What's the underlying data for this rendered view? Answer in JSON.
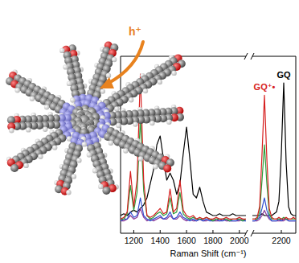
{
  "chart_data": [
    {
      "type": "line",
      "x_label": "Raman Shift (cm⁻¹)",
      "tick_labels": "x",
      "annotations": [
        {
          "text": "h⁺",
          "color": "#e8821e"
        }
      ],
      "xlim": [
        1100,
        2050
      ],
      "ylim": [
        0,
        1
      ],
      "xticks": [
        1200,
        1400,
        1600,
        1800,
        2000
      ],
      "x": [
        1100,
        1125,
        1150,
        1175,
        1200,
        1225,
        1250,
        1275,
        1300,
        1325,
        1350,
        1375,
        1400,
        1425,
        1450,
        1475,
        1500,
        1525,
        1550,
        1575,
        1600,
        1625,
        1650,
        1675,
        1700,
        1725,
        1750,
        1775,
        1800,
        1825,
        1850,
        1875,
        1900,
        1925,
        1950,
        1975,
        2000,
        2025,
        2050
      ],
      "series": [
        {
          "color": "#000000",
          "values": [
            0.1,
            0.11,
            0.1,
            0.12,
            0.13,
            0.12,
            0.14,
            0.16,
            0.2,
            0.28,
            0.36,
            0.5,
            0.55,
            0.42,
            0.3,
            0.34,
            0.3,
            0.22,
            0.28,
            0.45,
            0.6,
            0.42,
            0.22,
            0.2,
            0.26,
            0.18,
            0.12,
            0.11,
            0.1,
            0.1,
            0.11,
            0.1,
            0.1,
            0.1,
            0.11,
            0.1,
            0.1,
            0.1,
            0.1
          ]
        },
        {
          "color": "#8a3a9a",
          "values": [
            0.07,
            0.07,
            0.08,
            0.1,
            0.08,
            0.09,
            0.14,
            0.09,
            0.07,
            0.08,
            0.07,
            0.08,
            0.09,
            0.08,
            0.08,
            0.1,
            0.08,
            0.08,
            0.1,
            0.08,
            0.07,
            0.08,
            0.07,
            0.07,
            0.08,
            0.07,
            0.07,
            0.08,
            0.07,
            0.07,
            0.07,
            0.08,
            0.07,
            0.07,
            0.07,
            0.07,
            0.07,
            0.08,
            0.07
          ]
        },
        {
          "color": "#3050d0",
          "values": [
            0.07,
            0.08,
            0.08,
            0.12,
            0.09,
            0.1,
            0.2,
            0.1,
            0.08,
            0.07,
            0.08,
            0.09,
            0.1,
            0.08,
            0.09,
            0.12,
            0.08,
            0.09,
            0.12,
            0.09,
            0.08,
            0.07,
            0.08,
            0.07,
            0.08,
            0.07,
            0.08,
            0.07,
            0.07,
            0.08,
            0.07,
            0.07,
            0.08,
            0.07,
            0.07,
            0.07,
            0.08,
            0.07,
            0.07
          ]
        },
        {
          "color": "#2e9e3a",
          "values": [
            0.08,
            0.08,
            0.11,
            0.27,
            0.13,
            0.23,
            0.65,
            0.24,
            0.1,
            0.08,
            0.09,
            0.11,
            0.12,
            0.1,
            0.11,
            0.2,
            0.11,
            0.12,
            0.23,
            0.11,
            0.09,
            0.08,
            0.09,
            0.08,
            0.08,
            0.08,
            0.09,
            0.08,
            0.07,
            0.08,
            0.08,
            0.08,
            0.08,
            0.07,
            0.08,
            0.08,
            0.08,
            0.07,
            0.08
          ]
        },
        {
          "color": "#d62020",
          "values": [
            0.08,
            0.09,
            0.12,
            0.35,
            0.15,
            0.3,
            0.9,
            0.3,
            0.1,
            0.09,
            0.1,
            0.12,
            0.14,
            0.11,
            0.12,
            0.25,
            0.12,
            0.14,
            0.3,
            0.13,
            0.1,
            0.09,
            0.1,
            0.08,
            0.09,
            0.08,
            0.09,
            0.08,
            0.08,
            0.09,
            0.08,
            0.08,
            0.09,
            0.08,
            0.08,
            0.08,
            0.09,
            0.08,
            0.08
          ]
        }
      ]
    },
    {
      "type": "line",
      "tick_labels": "x",
      "xlim": [
        2080,
        2260
      ],
      "ylim": [
        0,
        1
      ],
      "xticks": [
        2200
      ],
      "x": [
        2080,
        2090,
        2100,
        2110,
        2120,
        2130,
        2140,
        2150,
        2160,
        2170,
        2180,
        2190,
        2200,
        2210,
        2220,
        2230,
        2240,
        2250,
        2260
      ],
      "series": [
        {
          "name": "GQ",
          "color": "#000000",
          "values": [
            0.1,
            0.1,
            0.1,
            0.1,
            0.11,
            0.1,
            0.1,
            0.1,
            0.1,
            0.11,
            0.12,
            0.18,
            0.45,
            0.85,
            0.4,
            0.15,
            0.11,
            0.1,
            0.1
          ]
        },
        {
          "color": "#8a3a9a",
          "values": [
            0.07,
            0.07,
            0.07,
            0.08,
            0.1,
            0.13,
            0.1,
            0.08,
            0.07,
            0.07,
            0.07,
            0.07,
            0.07,
            0.07,
            0.08,
            0.07,
            0.07,
            0.07,
            0.07
          ]
        },
        {
          "color": "#3050d0",
          "values": [
            0.07,
            0.07,
            0.08,
            0.09,
            0.14,
            0.2,
            0.13,
            0.09,
            0.07,
            0.07,
            0.07,
            0.08,
            0.07,
            0.08,
            0.08,
            0.07,
            0.07,
            0.07,
            0.07
          ]
        },
        {
          "color": "#2e9e3a",
          "values": [
            0.08,
            0.08,
            0.08,
            0.12,
            0.3,
            0.5,
            0.28,
            0.11,
            0.08,
            0.08,
            0.08,
            0.08,
            0.08,
            0.09,
            0.08,
            0.08,
            0.08,
            0.08,
            0.08
          ]
        },
        {
          "name": "GQ⁺•",
          "color": "#d62020",
          "values": [
            0.08,
            0.08,
            0.09,
            0.15,
            0.45,
            0.78,
            0.42,
            0.14,
            0.09,
            0.08,
            0.08,
            0.09,
            0.08,
            0.08,
            0.09,
            0.08,
            0.08,
            0.09,
            0.08
          ]
        }
      ]
    }
  ]
}
